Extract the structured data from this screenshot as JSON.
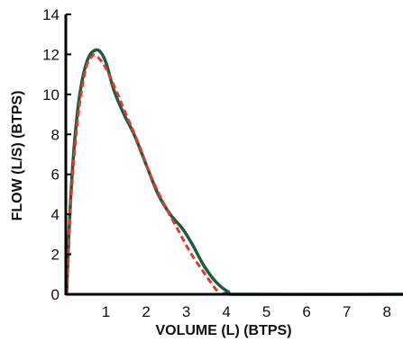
{
  "chart_data": {
    "type": "line",
    "xlabel": "VOLUME (L) (BTPS)",
    "ylabel": "FLOW (L/S) (BTPS)",
    "xlim": [
      0,
      8.4
    ],
    "ylim": [
      0,
      14
    ],
    "x_ticks": [
      1,
      2,
      3,
      4,
      5,
      6,
      7,
      8
    ],
    "y_ticks": [
      0,
      2,
      4,
      6,
      8,
      10,
      12,
      14
    ],
    "grid": false,
    "legend": "none",
    "series": [
      {
        "style": "solid",
        "color": "#1f5b3f",
        "points": [
          [
            0.02,
            0.0
          ],
          [
            0.1,
            4.0
          ],
          [
            0.2,
            7.2
          ],
          [
            0.32,
            9.6
          ],
          [
            0.45,
            11.1
          ],
          [
            0.58,
            11.9
          ],
          [
            0.72,
            12.2
          ],
          [
            0.85,
            12.15
          ],
          [
            1.0,
            11.6
          ],
          [
            1.2,
            10.2
          ],
          [
            1.45,
            9.0
          ],
          [
            1.7,
            8.0
          ],
          [
            2.0,
            6.5
          ],
          [
            2.3,
            5.0
          ],
          [
            2.6,
            4.0
          ],
          [
            2.9,
            3.3
          ],
          [
            3.15,
            2.5
          ],
          [
            3.45,
            1.4
          ],
          [
            3.75,
            0.6
          ],
          [
            4.05,
            0.12
          ],
          [
            4.3,
            0.0
          ],
          [
            8.4,
            0.0
          ]
        ]
      },
      {
        "style": "dashed",
        "color": "#e03a2c",
        "points": [
          [
            0.02,
            0.0
          ],
          [
            0.1,
            3.8
          ],
          [
            0.22,
            7.2
          ],
          [
            0.35,
            9.6
          ],
          [
            0.5,
            11.3
          ],
          [
            0.65,
            11.9
          ],
          [
            0.78,
            11.9
          ],
          [
            1.0,
            11.3
          ],
          [
            1.25,
            10.2
          ],
          [
            1.5,
            9.0
          ],
          [
            1.8,
            7.6
          ],
          [
            2.1,
            6.0
          ],
          [
            2.45,
            4.5
          ],
          [
            2.8,
            3.2
          ],
          [
            3.1,
            2.1
          ],
          [
            3.4,
            1.2
          ],
          [
            3.7,
            0.35
          ],
          [
            3.85,
            0.0
          ]
        ]
      }
    ]
  }
}
